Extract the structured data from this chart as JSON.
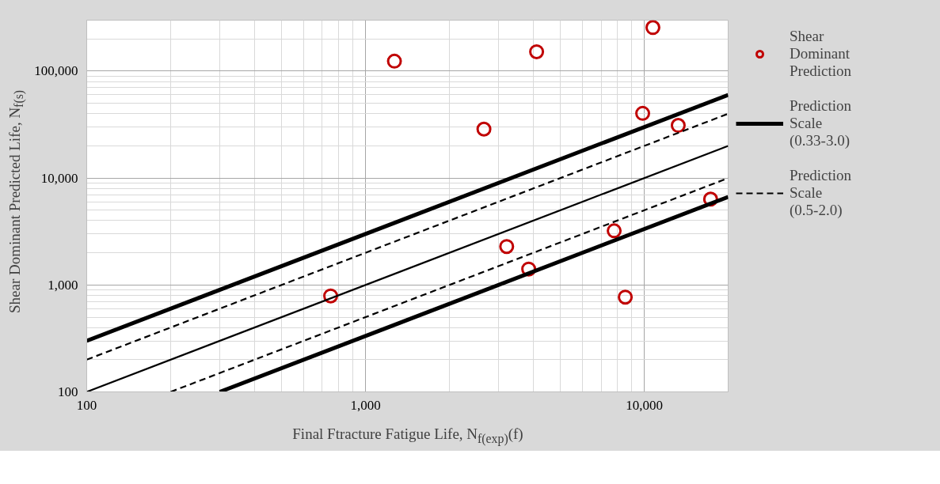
{
  "chart_data": {
    "type": "scatter",
    "xlabel": "Final Ftracture Fatigue Life, N$_{f(exp)}$(f)",
    "ylabel": "Shear Dominant Predicted Life, N$_{f(s)}$",
    "log": "xy",
    "grid": true,
    "legend": "right",
    "marker": "circle",
    "xlim": [
      100,
      20000
    ],
    "ylim": [
      100,
      300000
    ],
    "xticks": [
      100,
      {
        "value": 1000,
        "label": "1,000"
      },
      {
        "value": 10000,
        "label": "10,000"
      }
    ],
    "yticks": [
      100,
      {
        "value": 1000,
        "label": "1,000"
      },
      {
        "value": 10000,
        "label": "10,000"
      },
      {
        "value": 100000,
        "label": "100,000"
      }
    ],
    "series": [
      {
        "name": "Shear Dominant Prediction",
        "color": "#c00000",
        "x": [
          750,
          1270,
          2660,
          3210,
          3850,
          4110,
          7800,
          8550,
          9870,
          10740,
          13240,
          17300
        ],
        "values": [
          790,
          124000,
          28700,
          2290,
          1410,
          152000,
          3210,
          770,
          40300,
          256000,
          31100,
          6350
        ]
      },
      {
        "name": "Prediction Scale (0.33-3.0)",
        "type": "line",
        "color": "#000000",
        "line_style": "solid",
        "marker": "none",
        "x": [
          100,
          20000,
          null,
          300,
          20000
        ],
        "values": [
          300,
          60000,
          null,
          100,
          6667
        ]
      },
      {
        "type": "line",
        "color": "#000000",
        "line_style": "solid",
        "marker": "none",
        "x": [
          100,
          20000
        ],
        "values": [
          100,
          20000
        ]
      },
      {
        "name": "Prediction Scale (0.5-2.0)",
        "type": "line",
        "color": "#000000",
        "line_style": "dashed",
        "marker": "none",
        "x": [
          100,
          20000,
          null,
          200,
          20000
        ],
        "values": [
          200,
          40000,
          null,
          100,
          10000
        ]
      }
    ]
  }
}
